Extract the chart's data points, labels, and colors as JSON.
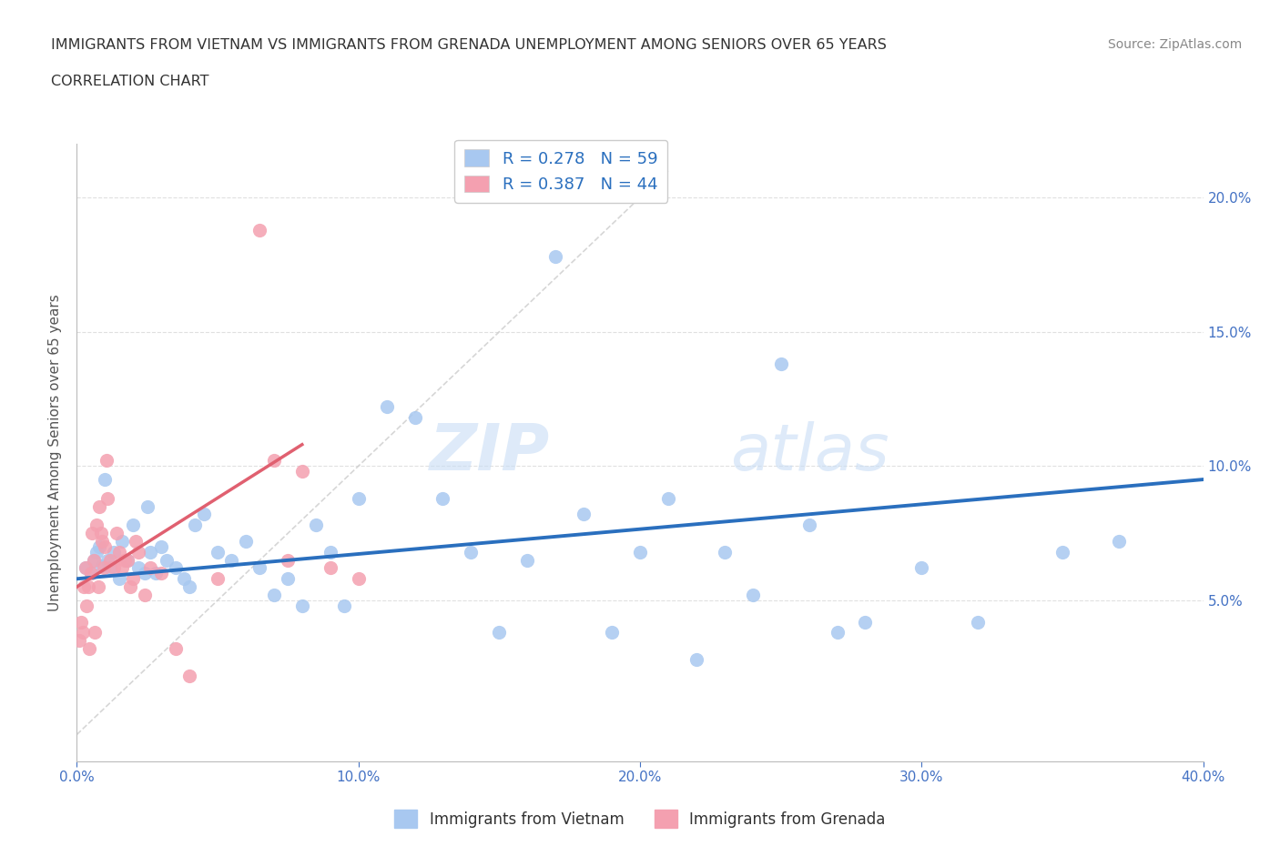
{
  "title_line1": "IMMIGRANTS FROM VIETNAM VS IMMIGRANTS FROM GRENADA UNEMPLOYMENT AMONG SENIORS OVER 65 YEARS",
  "title_line2": "CORRELATION CHART",
  "source_text": "Source: ZipAtlas.com",
  "ylabel": "Unemployment Among Seniors over 65 years",
  "xlim": [
    0.0,
    40.0
  ],
  "ylim": [
    -1.0,
    22.0
  ],
  "yticks": [
    5.0,
    10.0,
    15.0,
    20.0
  ],
  "xticks": [
    0.0,
    10.0,
    20.0,
    30.0,
    40.0
  ],
  "vietnam_R": 0.278,
  "vietnam_N": 59,
  "grenada_R": 0.387,
  "grenada_N": 44,
  "vietnam_color": "#a8c8f0",
  "grenada_color": "#f4a0b0",
  "vietnam_line_color": "#2a6fbe",
  "grenada_line_color": "#e06070",
  "ref_line_color": "#cccccc",
  "watermark_zip": "ZIP",
  "watermark_atlas": "atlas",
  "vietnam_scatter_x": [
    0.3,
    0.5,
    0.6,
    0.7,
    0.8,
    0.9,
    1.0,
    1.1,
    1.2,
    1.3,
    1.5,
    1.6,
    1.8,
    2.0,
    2.2,
    2.4,
    2.5,
    2.6,
    2.8,
    3.0,
    3.2,
    3.5,
    3.8,
    4.0,
    4.2,
    4.5,
    5.0,
    5.5,
    6.0,
    6.5,
    7.0,
    7.5,
    8.0,
    8.5,
    9.0,
    9.5,
    10.0,
    11.0,
    12.0,
    13.0,
    14.0,
    15.0,
    16.0,
    17.0,
    18.0,
    19.0,
    20.0,
    21.0,
    22.0,
    23.0,
    24.0,
    25.0,
    26.0,
    27.0,
    28.0,
    30.0,
    32.0,
    35.0,
    37.0
  ],
  "vietnam_scatter_y": [
    6.2,
    6.0,
    6.5,
    6.8,
    7.0,
    6.3,
    9.5,
    6.5,
    6.2,
    6.8,
    5.8,
    7.2,
    6.5,
    7.8,
    6.2,
    6.0,
    8.5,
    6.8,
    6.0,
    7.0,
    6.5,
    6.2,
    5.8,
    5.5,
    7.8,
    8.2,
    6.8,
    6.5,
    7.2,
    6.2,
    5.2,
    5.8,
    4.8,
    7.8,
    6.8,
    4.8,
    8.8,
    12.2,
    11.8,
    8.8,
    6.8,
    3.8,
    6.5,
    17.8,
    8.2,
    3.8,
    6.8,
    8.8,
    2.8,
    6.8,
    5.2,
    13.8,
    7.8,
    3.8,
    4.2,
    6.2,
    4.2,
    6.8,
    7.2
  ],
  "grenada_scatter_x": [
    0.1,
    0.15,
    0.2,
    0.25,
    0.3,
    0.35,
    0.4,
    0.45,
    0.5,
    0.55,
    0.6,
    0.65,
    0.7,
    0.75,
    0.8,
    0.85,
    0.9,
    0.95,
    1.0,
    1.05,
    1.1,
    1.2,
    1.3,
    1.4,
    1.5,
    1.6,
    1.7,
    1.8,
    1.9,
    2.0,
    2.1,
    2.2,
    2.4,
    2.6,
    3.0,
    3.5,
    4.0,
    5.0,
    6.5,
    7.0,
    7.5,
    8.0,
    9.0,
    10.0
  ],
  "grenada_scatter_y": [
    3.5,
    4.2,
    3.8,
    5.5,
    6.2,
    4.8,
    5.5,
    3.2,
    6.0,
    7.5,
    6.5,
    3.8,
    7.8,
    5.5,
    8.5,
    7.5,
    7.2,
    6.2,
    7.0,
    10.2,
    8.8,
    6.5,
    6.2,
    7.5,
    6.8,
    6.2,
    6.5,
    6.5,
    5.5,
    5.8,
    7.2,
    6.8,
    5.2,
    6.2,
    6.0,
    3.2,
    2.2,
    5.8,
    18.8,
    10.2,
    6.5,
    9.8,
    6.2,
    5.8
  ],
  "vietnam_trend_x": [
    0.0,
    40.0
  ],
  "vietnam_trend_y": [
    5.8,
    9.5
  ],
  "grenada_trend_x": [
    0.0,
    8.0
  ],
  "grenada_trend_y": [
    5.5,
    10.8
  ],
  "ref_line_x": [
    0.0,
    21.0
  ],
  "ref_line_y": [
    0.0,
    21.0
  ],
  "bg_color": "#ffffff",
  "grid_color": "#e0e0e0",
  "title_color": "#333333",
  "tick_label_color": "#4472c4"
}
